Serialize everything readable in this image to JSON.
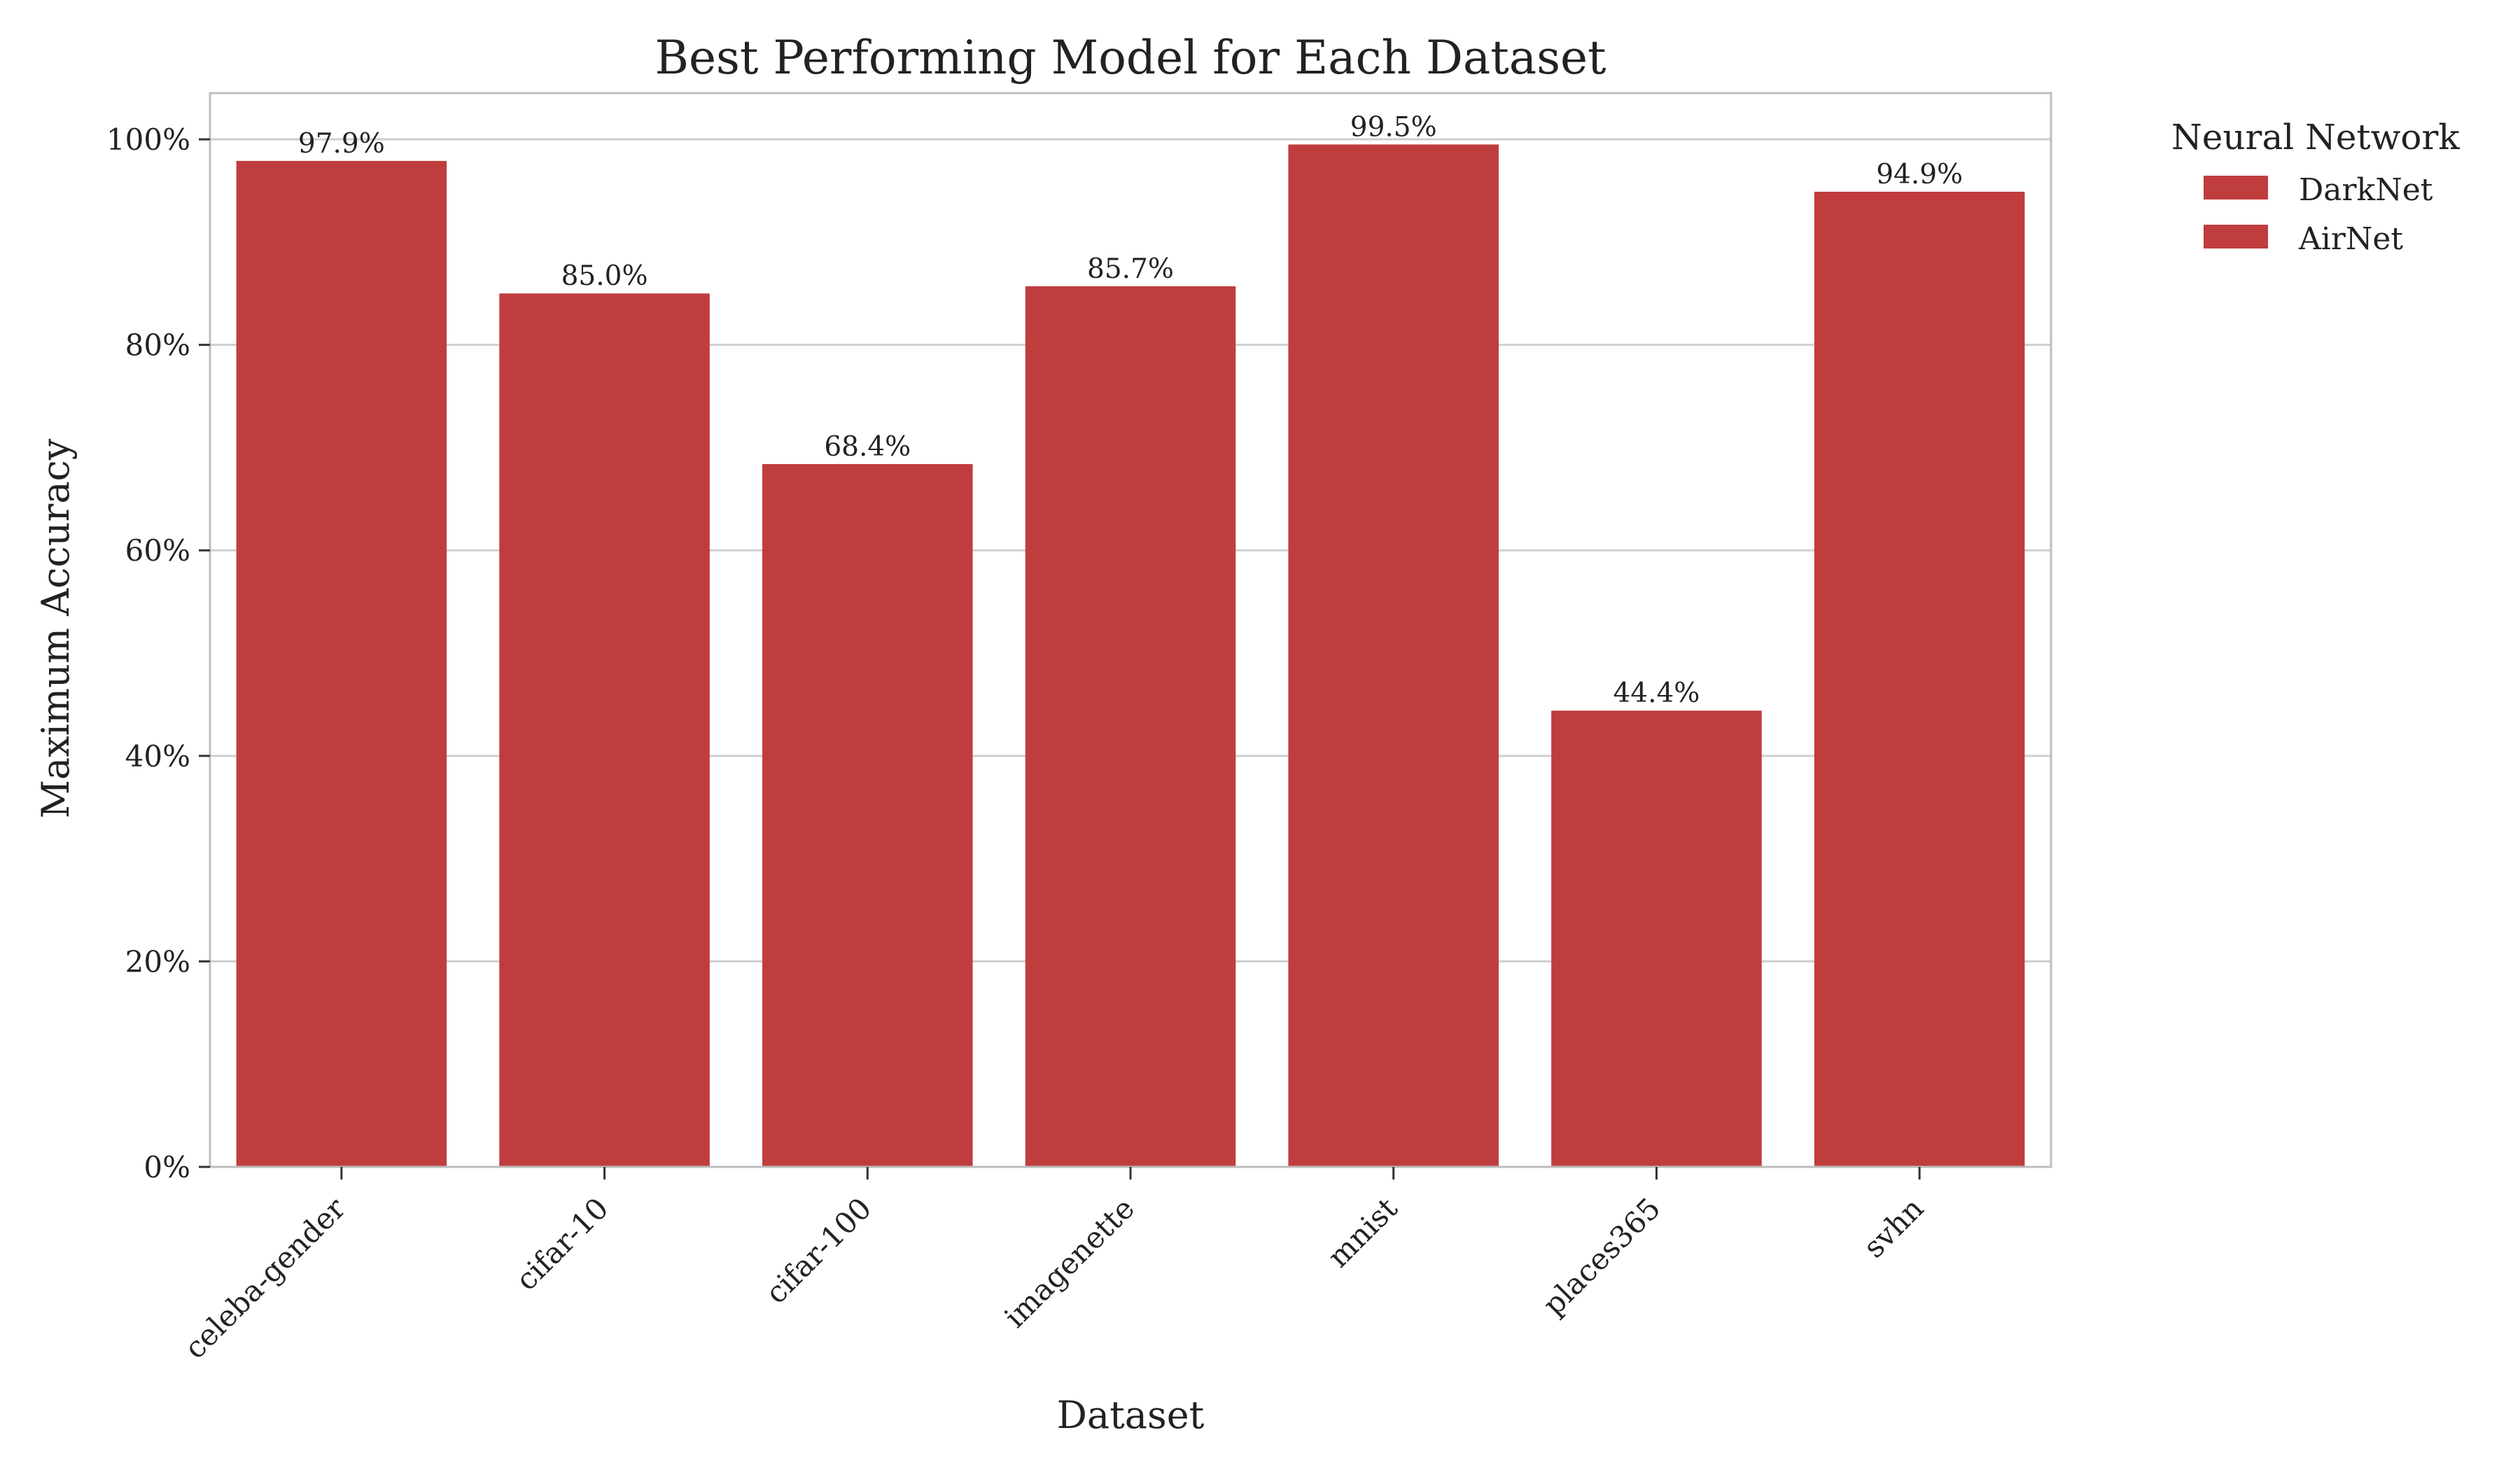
{
  "chart_data": {
    "type": "bar",
    "title": "Best Performing Model for Each Dataset",
    "xlabel": "Dataset",
    "ylabel": "Maximum Accuracy",
    "categories": [
      "celeba-gender",
      "cifar-10",
      "cifar-100",
      "imagenette",
      "mnist",
      "places365",
      "svhn"
    ],
    "values": [
      97.9,
      85.0,
      68.4,
      85.7,
      99.5,
      44.4,
      94.9
    ],
    "value_labels": [
      "97.9%",
      "85.0%",
      "68.4%",
      "85.7%",
      "99.5%",
      "44.4%",
      "94.9%"
    ],
    "ylim": [
      0,
      104.5
    ],
    "yticks": [
      0,
      20,
      40,
      60,
      80,
      100
    ],
    "ytick_labels": [
      "0%",
      "20%",
      "40%",
      "60%",
      "80%",
      "100%"
    ],
    "grid": "horizontal",
    "bar_color": "#c03d3e",
    "legend": {
      "title": "Neural Network",
      "placement": "outside-right",
      "entries": [
        {
          "name": "DarkNet",
          "color": "#c03d3e"
        },
        {
          "name": "AirNet",
          "color": "#c03d3e"
        }
      ]
    }
  }
}
